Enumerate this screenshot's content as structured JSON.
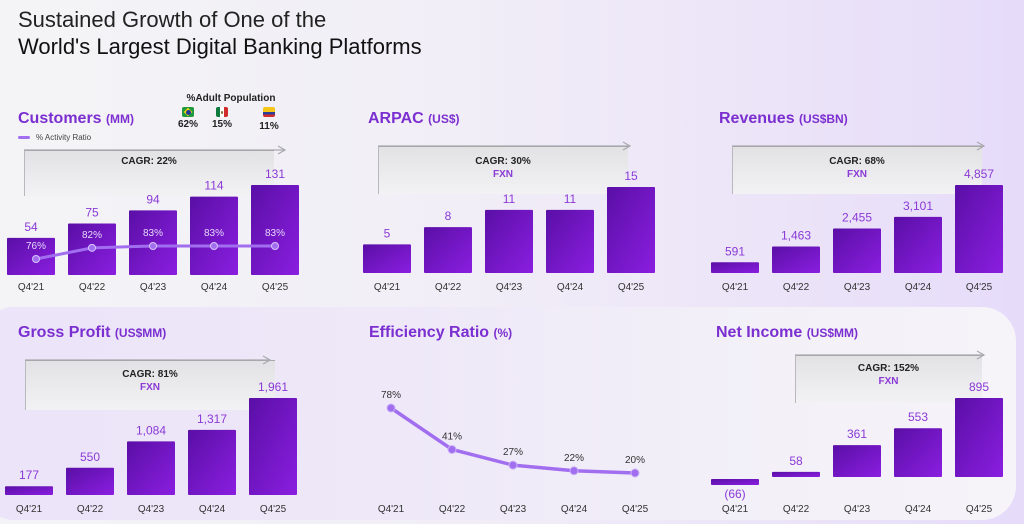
{
  "title": {
    "line1": "Sustained Growth of One of the",
    "line2": "World's Largest Digital Banking Platforms"
  },
  "colors": {
    "accent": "#7b2fd0",
    "bar_top": "#5a0fa6",
    "bar_bottom": "#8a1ee0",
    "line": "#a26ef0",
    "label": "#8a3ad6"
  },
  "adult_population": {
    "title": "%Adult Population",
    "countries": [
      {
        "flag": "brazil-flag-icon",
        "value": "62%"
      },
      {
        "flag": "mexico-flag-icon",
        "value": "15%"
      },
      {
        "flag": "colombia-flag-icon",
        "value": "11%"
      }
    ]
  },
  "chart_data": [
    {
      "type": "bar",
      "id": "customers",
      "title": "Customers",
      "unit": "(MM)",
      "categories": [
        "Q4'21",
        "Q4'22",
        "Q4'23",
        "Q4'24",
        "Q4'25"
      ],
      "values": [
        54,
        75,
        94,
        114,
        131
      ],
      "labels": [
        "54",
        "75",
        "94",
        "114",
        "131"
      ],
      "cagr": "CAGR: 22%",
      "fxn": "",
      "legend": "% Activity Ratio",
      "overlay_line": {
        "name": "% Activity Ratio",
        "values": [
          76,
          82,
          83,
          83,
          83
        ],
        "labels": [
          "76%",
          "82%",
          "83%",
          "83%",
          "83%"
        ]
      },
      "ylim": [
        0,
        140
      ]
    },
    {
      "type": "bar",
      "id": "arpac",
      "title": "ARPAC",
      "unit": "(US$)",
      "categories": [
        "Q4'21",
        "Q4'22",
        "Q4'23",
        "Q4'24",
        "Q4'25"
      ],
      "values": [
        5,
        8,
        11,
        11,
        15
      ],
      "labels": [
        "5",
        "8",
        "11",
        "11",
        "15"
      ],
      "cagr": "CAGR: 30%",
      "fxn": "FXN",
      "ylim": [
        0,
        16
      ]
    },
    {
      "type": "bar",
      "id": "revenues",
      "title": "Revenues",
      "unit": "(US$BN)",
      "categories": [
        "Q4'21",
        "Q4'22",
        "Q4'23",
        "Q4'24",
        "Q4'25"
      ],
      "values": [
        591,
        1463,
        2455,
        3101,
        4857
      ],
      "labels": [
        "591",
        "1,463",
        "2,455",
        "3,101",
        "4,857"
      ],
      "cagr": "CAGR: 68%",
      "fxn": "FXN",
      "ylim": [
        0,
        5000
      ]
    },
    {
      "type": "bar",
      "id": "gross_profit",
      "title": "Gross Profit",
      "unit": "(US$MM)",
      "categories": [
        "Q4'21",
        "Q4'22",
        "Q4'23",
        "Q4'24",
        "Q4'25"
      ],
      "values": [
        177,
        550,
        1084,
        1317,
        1961
      ],
      "labels": [
        "177",
        "550",
        "1,084",
        "1,317",
        "1,961"
      ],
      "cagr": "CAGR: 81%",
      "fxn": "FXN",
      "ylim": [
        0,
        2000
      ]
    },
    {
      "type": "line",
      "id": "efficiency_ratio",
      "title": "Efficiency Ratio",
      "unit": "(%)",
      "categories": [
        "Q4'21",
        "Q4'22",
        "Q4'23",
        "Q4'24",
        "Q4'25"
      ],
      "values": [
        78,
        41,
        27,
        22,
        20
      ],
      "labels": [
        "78%",
        "41%",
        "27%",
        "22%",
        "20%"
      ],
      "ylim": [
        0,
        80
      ]
    },
    {
      "type": "bar",
      "id": "net_income",
      "title": "Net Income",
      "unit": "(US$MM)",
      "categories": [
        "Q4'21",
        "Q4'22",
        "Q4'23",
        "Q4'24",
        "Q4'25"
      ],
      "values": [
        -66,
        58,
        361,
        553,
        895
      ],
      "labels": [
        "(66)",
        "58",
        "361",
        "553",
        "895"
      ],
      "cagr": "CAGR: 152%",
      "fxn": "FXN",
      "ylim": [
        -100,
        900
      ]
    }
  ]
}
